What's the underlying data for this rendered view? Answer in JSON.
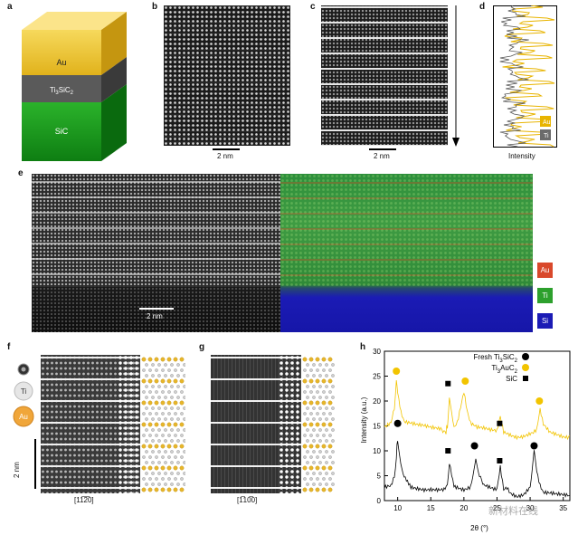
{
  "panels": {
    "a": {
      "letter": "a",
      "layers": [
        "Au",
        "Ti3SiC2",
        "SiC"
      ]
    },
    "b": {
      "letter": "b",
      "scale": "2 nm"
    },
    "c": {
      "letter": "c",
      "scale": "2 nm"
    },
    "d": {
      "letter": "d",
      "xlabel": "Intensity",
      "legend": [
        "Au",
        "Ti"
      ]
    },
    "e": {
      "letter": "e",
      "scale": "2 nm",
      "legend": [
        "Au",
        "Ti",
        "Si"
      ]
    },
    "f": {
      "letter": "f",
      "atoms": [
        "Ti",
        "Au"
      ],
      "scale": "2 nm",
      "zone": "[11̅2̅0]"
    },
    "g": {
      "letter": "g",
      "zone": "[1̅10̅0]"
    },
    "h": {
      "letter": "h"
    }
  },
  "colors": {
    "au": "#e8b400",
    "ti": "#6b6b6b",
    "sic": "#1aa61a",
    "si_map": "#1b1bb5",
    "ti_map": "#2da02d",
    "au_map": "#d9482b"
  },
  "chart_data": {
    "type": "line",
    "xlabel": "2θ (°)",
    "ylabel": "Intensity (a.u.)",
    "xlim": [
      8,
      36
    ],
    "ylim": [
      0,
      30
    ],
    "xticks": [
      10,
      15,
      20,
      25,
      30,
      35
    ],
    "yticks": [
      0,
      5,
      10,
      15,
      20,
      25,
      30
    ],
    "legend": [
      "Fresh Ti3SiC2",
      "Ti3AuC2",
      "SiC"
    ],
    "series": [
      {
        "name": "Fresh Ti3SiC2",
        "color": "#000000",
        "x": [
          8,
          9,
          9.5,
          9.8,
          10,
          10.3,
          10.8,
          12,
          14,
          16,
          17,
          17.5,
          17.8,
          18.5,
          20,
          21,
          21.5,
          21.8,
          22.2,
          23,
          24.5,
          25,
          25.5,
          26,
          26.5,
          27,
          28,
          29,
          30,
          30.6,
          31,
          31.5,
          32,
          34,
          36
        ],
        "y": [
          2.5,
          3,
          5,
          9,
          12.5,
          9,
          5.5,
          3,
          2,
          1.8,
          2,
          3,
          8,
          3,
          2.5,
          3,
          6,
          8.5,
          6,
          3,
          2,
          2,
          6.5,
          2,
          2.5,
          1.5,
          1,
          1.5,
          3,
          9.5,
          6,
          3,
          1.5,
          1,
          1
        ]
      },
      {
        "name": "Ti3AuC2",
        "color": "#f2c400",
        "x": [
          8,
          9,
          9.5,
          9.8,
          10,
          10.5,
          11,
          13,
          15,
          16.5,
          17.3,
          17.5,
          17.8,
          18.5,
          19,
          19.5,
          20,
          20.5,
          21,
          22,
          24,
          25,
          25.5,
          26,
          27,
          28,
          29,
          30.5,
          31,
          31.5,
          32,
          33,
          35,
          36
        ],
        "y": [
          15,
          16,
          19,
          24,
          22,
          18,
          16,
          15,
          14.5,
          14.5,
          14,
          15,
          21,
          15,
          16,
          19,
          22,
          18,
          15.5,
          14.5,
          14,
          14,
          17,
          14,
          13.5,
          13,
          13,
          13.5,
          14,
          18,
          15,
          13.5,
          13,
          13
        ]
      }
    ],
    "markers": [
      {
        "type": "Fresh Ti3SiC2",
        "x": 10,
        "y": 15.5
      },
      {
        "type": "Fresh Ti3SiC2",
        "x": 21.6,
        "y": 11
      },
      {
        "type": "Fresh Ti3SiC2",
        "x": 30.6,
        "y": 11
      },
      {
        "type": "Ti3AuC2",
        "x": 9.8,
        "y": 26
      },
      {
        "type": "Ti3AuC2",
        "x": 20.2,
        "y": 24
      },
      {
        "type": "Ti3AuC2",
        "x": 31.4,
        "y": 20
      },
      {
        "type": "SiC",
        "x": 17.6,
        "y": 23.5
      },
      {
        "type": "SiC",
        "x": 17.6,
        "y": 10
      },
      {
        "type": "SiC",
        "x": 25.4,
        "y": 15.5
      },
      {
        "type": "SiC",
        "x": 25.4,
        "y": 8
      }
    ]
  },
  "watermark": "新材料在线"
}
